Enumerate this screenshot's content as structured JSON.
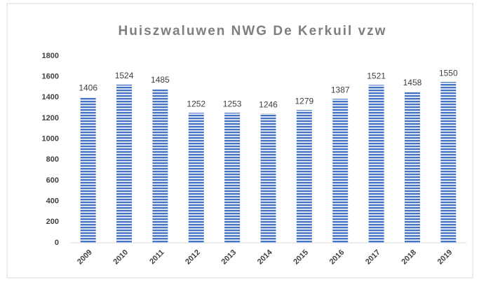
{
  "chart_data": {
    "type": "bar",
    "title": "Huiszwaluwen NWG De Kerkuil vzw",
    "categories": [
      "2009",
      "2010",
      "2011",
      "2012",
      "2013",
      "2014",
      "2015",
      "2016",
      "2017",
      "2018",
      "2019"
    ],
    "values": [
      1406,
      1524,
      1485,
      1252,
      1253,
      1246,
      1279,
      1387,
      1521,
      1458,
      1550
    ],
    "color": "#4472c4",
    "ylim": [
      0,
      1800
    ],
    "yticks": [
      0,
      200,
      400,
      600,
      800,
      1000,
      1200,
      1400,
      1600,
      1800
    ],
    "grid": false
  }
}
